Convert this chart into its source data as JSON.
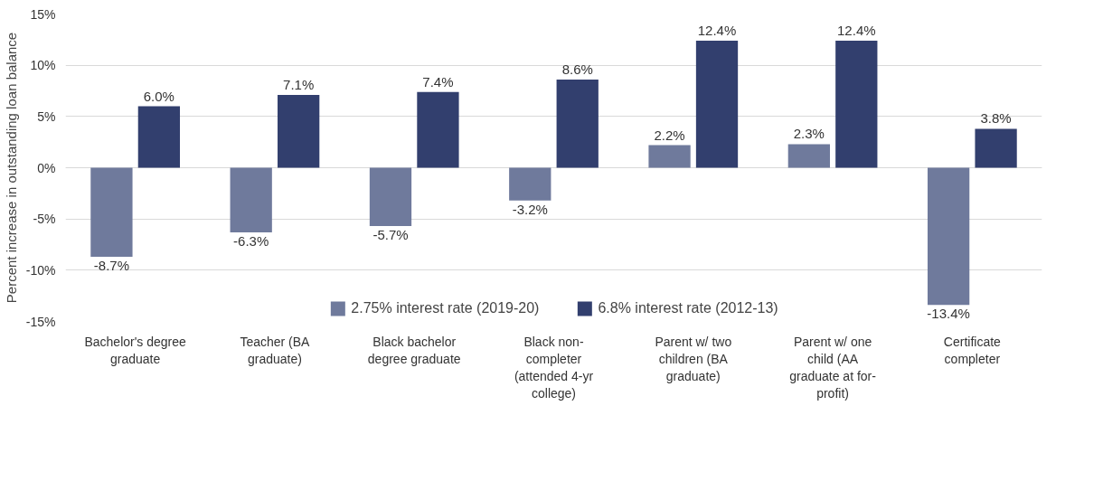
{
  "chart_data": {
    "type": "bar",
    "ylabel": "Percent increase in outstanding loan balance",
    "categories": [
      "Bachelor's degree graduate",
      "Teacher (BA graduate)",
      "Black bachelor degree graduate",
      "Black non-completer (attended 4-yr college)",
      "Parent w/ two children (BA graduate)",
      "Parent w/ one child (AA graduate at for-profit)",
      "Certificate completer"
    ],
    "series": [
      {
        "name": "2.75% interest rate (2019-20)",
        "color": "#6f7a9c",
        "values": [
          -8.7,
          -6.3,
          -5.7,
          -3.2,
          2.2,
          2.3,
          -13.4
        ],
        "value_labels": [
          "-8.7%",
          "-6.3%",
          "-5.7%",
          "-3.2%",
          "2.2%",
          "2.3%",
          "-13.4%"
        ]
      },
      {
        "name": "6.8% interest rate (2012-13)",
        "color": "#323f6e",
        "values": [
          6.0,
          7.1,
          7.4,
          8.6,
          12.4,
          12.4,
          3.8
        ],
        "value_labels": [
          "6.0%",
          "7.1%",
          "7.4%",
          "8.6%",
          "12.4%",
          "12.4%",
          "3.8%"
        ]
      }
    ],
    "ylim": [
      -15,
      15
    ],
    "yticks": [
      {
        "value": -15,
        "label": "-15%"
      },
      {
        "value": -10,
        "label": "-10%"
      },
      {
        "value": -5,
        "label": "-5%"
      },
      {
        "value": 0,
        "label": "0%"
      },
      {
        "value": 5,
        "label": "5%"
      },
      {
        "value": 10,
        "label": "10%"
      },
      {
        "value": 15,
        "label": "15%"
      }
    ],
    "grid": "y",
    "legend": "bottom"
  }
}
